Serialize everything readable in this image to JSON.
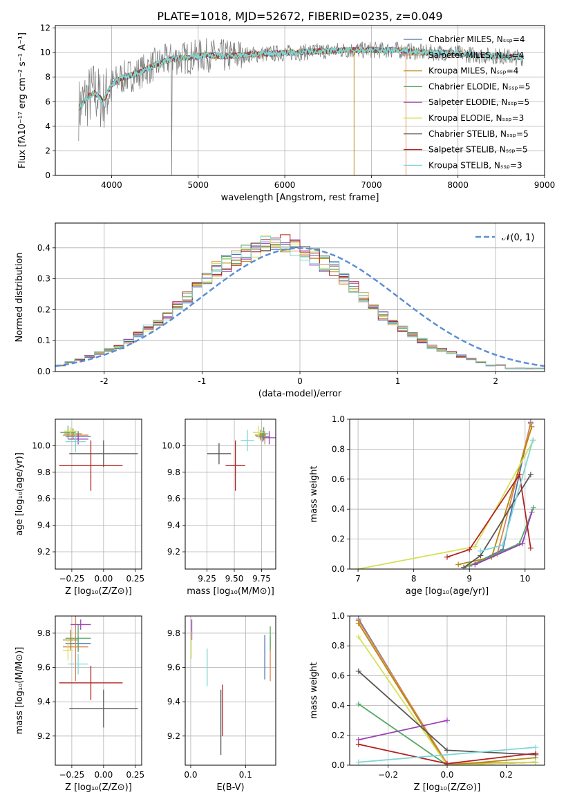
{
  "title": "PLATE=1018, MJD=52672, FIBERID=0235, z=0.049",
  "series_colors": [
    "#4c72b0",
    "#dd8452",
    "#b8860b",
    "#55a868",
    "#9c3fb5",
    "#d4e157",
    "#555555",
    "#b22222",
    "#7fd6d6"
  ],
  "chart_data": [
    {
      "id": "spectrum",
      "type": "line",
      "xlabel": "wavelength [Angstrom, rest frame]",
      "ylabel": "Flux [fλ10⁻¹⁷ erg cm⁻² s⁻¹ A⁻¹]",
      "xlim": [
        3350,
        9000
      ],
      "ylim": [
        0,
        12.2
      ],
      "xticks": [
        4000,
        5000,
        6000,
        7000,
        8000,
        9000
      ],
      "yticks": [
        0,
        2,
        4,
        6,
        8,
        10,
        12
      ],
      "legend_position": "right",
      "legend": [
        "Chabrier MILES, Nₛₛₚ=4",
        "Salpeter MILES, Nₛₛₚ=4",
        "Kroupa MILES, Nₛₛₚ=4",
        "Chabrier ELODIE, Nₛₛₚ=5",
        "Salpeter ELODIE, Nₛₛₚ=5",
        "Kroupa ELODIE, Nₛₛₚ=3",
        "Chabrier STELIB, Nₛₛₚ=5",
        "Salpeter STELIB, Nₛₛₚ=5",
        "Kroupa STELIB, Nₛₛₚ=3"
      ],
      "continuum_x": [
        3600,
        3700,
        3800,
        3900,
        4000,
        4100,
        4300,
        4500,
        4700,
        4900,
        5100,
        5300,
        5500,
        5800,
        6100,
        6400,
        6700,
        7000,
        7300,
        7600,
        7900,
        8200,
        8500,
        8700
      ],
      "continuum_y": [
        5.2,
        6.2,
        6.8,
        6.0,
        7.4,
        7.9,
        8.3,
        9.0,
        9.5,
        9.6,
        9.8,
        9.7,
        9.8,
        9.9,
        10.0,
        10.1,
        10.2,
        10.2,
        10.2,
        10.0,
        10.0,
        9.8,
        9.7,
        9.6
      ]
    },
    {
      "id": "residuals",
      "type": "line",
      "xlabel": "(data-model)/error",
      "ylabel": "Normed distribution",
      "xlim": [
        -2.5,
        2.5
      ],
      "ylim": [
        0,
        0.48
      ],
      "xticks": [
        -2,
        -1,
        0,
        1,
        2
      ],
      "yticks": [
        0.0,
        0.1,
        0.2,
        0.3,
        0.4
      ],
      "legend": [
        "𝒩(0, 1)"
      ],
      "bin_width": 0.1,
      "histogram_base": [
        0.02,
        0.03,
        0.04,
        0.05,
        0.06,
        0.07,
        0.08,
        0.1,
        0.12,
        0.14,
        0.16,
        0.18,
        0.21,
        0.24,
        0.27,
        0.3,
        0.33,
        0.35,
        0.37,
        0.38,
        0.4,
        0.41,
        0.42,
        0.41,
        0.4,
        0.39,
        0.37,
        0.35,
        0.33,
        0.3,
        0.27,
        0.24,
        0.21,
        0.18,
        0.16,
        0.14,
        0.12,
        0.1,
        0.08,
        0.07,
        0.06,
        0.05,
        0.04,
        0.03,
        0.02,
        0.02,
        0.01,
        0.01,
        0.01,
        0.01
      ]
    },
    {
      "id": "age-vs-Z",
      "type": "scatter",
      "xlabel": "Z [log₁₀(Z/Z⊙)]",
      "ylabel": "age  [log₁₀(age/yr)]",
      "xlim": [
        -0.38,
        0.3
      ],
      "ylim": [
        9.07,
        10.2
      ],
      "xticks": [
        -0.25,
        0.0,
        0.25
      ],
      "xticklabels": [
        "−0.25",
        "0.00",
        "0.25"
      ],
      "yticks": [
        9.2,
        9.4,
        9.6,
        9.8,
        10.0
      ],
      "points": [
        {
          "x": -0.2,
          "y": 10.07,
          "xerr": 0.1,
          "yerr": 0.04,
          "series": 0
        },
        {
          "x": -0.22,
          "y": 10.08,
          "xerr": 0.1,
          "yerr": 0.03,
          "series": 1
        },
        {
          "x": -0.24,
          "y": 10.09,
          "xerr": 0.07,
          "yerr": 0.04,
          "series": 2
        },
        {
          "x": -0.28,
          "y": 10.1,
          "xerr": 0.06,
          "yerr": 0.05,
          "series": 3
        },
        {
          "x": -0.2,
          "y": 10.05,
          "xerr": 0.08,
          "yerr": 0.04,
          "series": 4
        },
        {
          "x": -0.26,
          "y": 10.11,
          "xerr": 0.05,
          "yerr": 0.03,
          "series": 5
        },
        {
          "x": 0.0,
          "y": 9.94,
          "xerr": 0.27,
          "yerr": 0.1,
          "series": 6
        },
        {
          "x": -0.1,
          "y": 9.85,
          "xerr": 0.25,
          "yerr": 0.19,
          "series": 7
        },
        {
          "x": -0.22,
          "y": 10.03,
          "xerr": 0.08,
          "yerr": 0.08,
          "series": 8
        }
      ]
    },
    {
      "id": "age-vs-mass",
      "type": "scatter",
      "xlabel": "mass [log₁₀(M/M⊙)]",
      "xlim": [
        9.05,
        9.88
      ],
      "ylim": [
        9.07,
        10.2
      ],
      "xticks": [
        9.25,
        9.5,
        9.75
      ],
      "xticklabels": [
        "9.25",
        "9.50",
        "9.75"
      ],
      "yticks": [
        9.2,
        9.4,
        9.6,
        9.8,
        10.0
      ],
      "points": [
        {
          "x": 9.76,
          "y": 10.07,
          "xerr": 0.06,
          "yerr": 0.04,
          "series": 0
        },
        {
          "x": 9.78,
          "y": 10.06,
          "xerr": 0.05,
          "yerr": 0.05,
          "series": 1
        },
        {
          "x": 9.74,
          "y": 10.08,
          "xerr": 0.05,
          "yerr": 0.04,
          "series": 2
        },
        {
          "x": 9.77,
          "y": 10.09,
          "xerr": 0.04,
          "yerr": 0.05,
          "series": 3
        },
        {
          "x": 9.82,
          "y": 10.06,
          "xerr": 0.06,
          "yerr": 0.05,
          "series": 4
        },
        {
          "x": 9.72,
          "y": 10.1,
          "xerr": 0.05,
          "yerr": 0.05,
          "series": 5
        },
        {
          "x": 9.36,
          "y": 9.94,
          "xerr": 0.11,
          "yerr": 0.08,
          "series": 6
        },
        {
          "x": 9.51,
          "y": 9.85,
          "xerr": 0.09,
          "yerr": 0.19,
          "series": 7
        },
        {
          "x": 9.62,
          "y": 10.04,
          "xerr": 0.06,
          "yerr": 0.08,
          "series": 8
        }
      ]
    },
    {
      "id": "massweight-vs-age",
      "type": "line",
      "xlabel": "age  [log₁₀(age/yr)]",
      "ylabel": "mass weight",
      "xlim": [
        6.85,
        10.35
      ],
      "ylim": [
        0,
        1
      ],
      "xticks": [
        7,
        8,
        9,
        10
      ],
      "yticks": [
        0.0,
        0.2,
        0.4,
        0.6,
        0.8,
        1.0
      ],
      "series": [
        {
          "x": [
            9.0,
            9.6,
            10.1
          ],
          "y": [
            0.02,
            0.13,
            0.98
          ],
          "series": 0
        },
        {
          "x": [
            8.9,
            9.5,
            10.1
          ],
          "y": [
            0.01,
            0.1,
            0.97
          ],
          "series": 1
        },
        {
          "x": [
            8.8,
            9.4,
            10.12
          ],
          "y": [
            0.03,
            0.08,
            0.95
          ],
          "series": 2
        },
        {
          "x": [
            9.0,
            9.9,
            10.15
          ],
          "y": [
            0.02,
            0.17,
            0.41
          ],
          "series": 3
        },
        {
          "x": [
            9.1,
            9.95,
            10.12
          ],
          "y": [
            0.03,
            0.17,
            0.38
          ],
          "series": 4
        },
        {
          "x": [
            7.0,
            9.1,
            10.15
          ],
          "y": [
            0.0,
            0.15,
            0.86
          ],
          "series": 5
        },
        {
          "x": [
            8.9,
            9.2,
            10.1
          ],
          "y": [
            0.01,
            0.09,
            0.63
          ],
          "series": 6
        },
        {
          "x": [
            8.6,
            9.0,
            9.9,
            10.1
          ],
          "y": [
            0.08,
            0.13,
            0.63,
            0.14
          ],
          "series": 7
        },
        {
          "x": [
            9.2,
            9.6,
            10.14
          ],
          "y": [
            0.12,
            0.16,
            0.86
          ],
          "series": 8
        }
      ]
    },
    {
      "id": "mass-vs-Z",
      "type": "scatter",
      "xlabel": "Z [log₁₀(Z/Z⊙)]",
      "ylabel": "mass [log₁₀(M/M⊙)]",
      "xlim": [
        -0.38,
        0.3
      ],
      "ylim": [
        9.03,
        9.9
      ],
      "xticks": [
        -0.25,
        0.0,
        0.25
      ],
      "xticklabels": [
        "−0.25",
        "0.00",
        "0.25"
      ],
      "yticks": [
        9.2,
        9.4,
        9.6,
        9.8
      ],
      "points": [
        {
          "x": -0.2,
          "y": 9.74,
          "xerr": 0.1,
          "yerr": 0.04,
          "series": 0
        },
        {
          "x": -0.22,
          "y": 9.72,
          "xerr": 0.1,
          "yerr": 0.2,
          "series": 1
        },
        {
          "x": -0.26,
          "y": 9.76,
          "xerr": 0.06,
          "yerr": 0.06,
          "series": 2
        },
        {
          "x": -0.2,
          "y": 9.77,
          "xerr": 0.1,
          "yerr": 0.08,
          "series": 3
        },
        {
          "x": -0.18,
          "y": 9.85,
          "xerr": 0.08,
          "yerr": 0.03,
          "series": 4
        },
        {
          "x": -0.28,
          "y": 9.7,
          "xerr": 0.04,
          "yerr": 0.06,
          "series": 5
        },
        {
          "x": 0.0,
          "y": 9.36,
          "xerr": 0.27,
          "yerr": 0.11,
          "series": 6
        },
        {
          "x": -0.1,
          "y": 9.51,
          "xerr": 0.25,
          "yerr": 0.1,
          "series": 7
        },
        {
          "x": -0.2,
          "y": 9.62,
          "xerr": 0.08,
          "yerr": 0.06,
          "series": 8
        }
      ]
    },
    {
      "id": "mass-vs-ebv",
      "type": "scatter",
      "xlabel": "E(B-V)",
      "xlim": [
        -0.01,
        0.155
      ],
      "ylim": [
        9.03,
        9.9
      ],
      "xticks": [
        0.0,
        0.1
      ],
      "xticklabels": [
        "0.0",
        "0.1"
      ],
      "yticks": [
        9.2,
        9.4,
        9.6,
        9.8
      ],
      "points": [
        {
          "x": 0.135,
          "y": 9.66,
          "yerr": 0.13,
          "series": 0
        },
        {
          "x": 0.145,
          "y": 9.65,
          "yerr": 0.13,
          "series": 1
        },
        {
          "x": 0.002,
          "y": 9.82,
          "yerr": 0.06,
          "series": 4
        },
        {
          "x": 0.001,
          "y": 9.73,
          "yerr": 0.08,
          "series": 5
        },
        {
          "x": 0.055,
          "y": 9.28,
          "yerr": 0.19,
          "series": 6
        },
        {
          "x": 0.058,
          "y": 9.35,
          "yerr": 0.15,
          "series": 7
        },
        {
          "x": 0.03,
          "y": 9.6,
          "yerr": 0.11,
          "series": 8
        },
        {
          "x": 0.145,
          "y": 9.77,
          "yerr": 0.07,
          "series": 3
        }
      ]
    },
    {
      "id": "massweight-vs-Z",
      "type": "line",
      "xlabel": "Z [log₁₀(Z/Z⊙)]",
      "ylabel": "mass weight",
      "xlim": [
        -0.33,
        0.33
      ],
      "ylim": [
        0,
        1
      ],
      "xticks": [
        -0.2,
        0.0,
        0.2
      ],
      "xticklabels": [
        "−0.2",
        "0.0",
        "0.2"
      ],
      "yticks": [
        0.0,
        0.2,
        0.4,
        0.6,
        0.8,
        1.0
      ],
      "series": [
        {
          "x": [
            -0.3,
            0.0,
            0.3
          ],
          "y": [
            0.98,
            0.0,
            0.02
          ],
          "series": 0
        },
        {
          "x": [
            -0.3,
            0.0,
            0.3
          ],
          "y": [
            0.97,
            0.01,
            0.02
          ],
          "series": 1
        },
        {
          "x": [
            -0.3,
            0.0,
            0.3
          ],
          "y": [
            0.95,
            0.0,
            0.05
          ],
          "series": 2
        },
        {
          "x": [
            -0.3,
            0.0,
            0.3
          ],
          "y": [
            0.41,
            0.0,
            0.02
          ],
          "series": 3
        },
        {
          "x": [
            -0.3,
            0.0
          ],
          "y": [
            0.17,
            0.3
          ],
          "series": 4
        },
        {
          "x": [
            -0.3,
            0.0,
            0.3
          ],
          "y": [
            0.86,
            0.0,
            0.02
          ],
          "series": 5
        },
        {
          "x": [
            -0.3,
            0.0,
            0.3
          ],
          "y": [
            0.63,
            0.1,
            0.07
          ],
          "series": 6
        },
        {
          "x": [
            -0.3,
            0.0,
            0.3
          ],
          "y": [
            0.14,
            0.01,
            0.08
          ],
          "series": 7
        },
        {
          "x": [
            -0.3,
            0.3
          ],
          "y": [
            0.02,
            0.12
          ],
          "series": 8
        }
      ]
    }
  ]
}
